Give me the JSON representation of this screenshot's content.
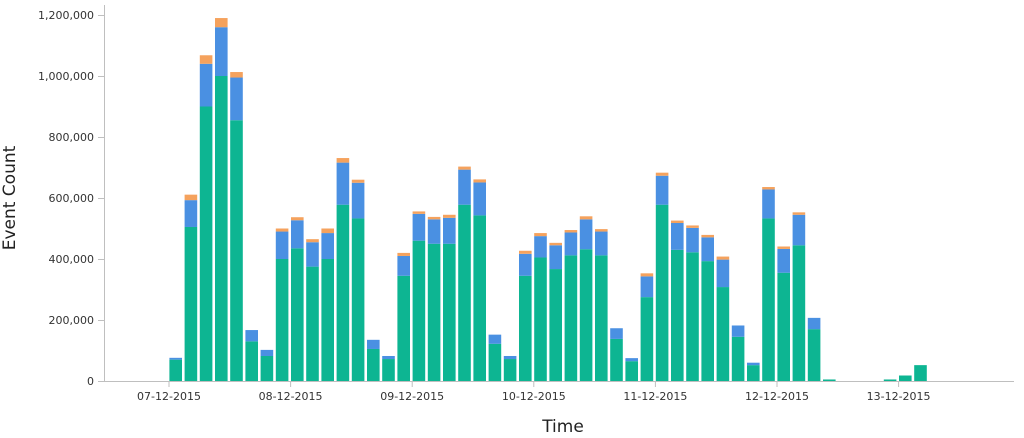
{
  "chart_data": {
    "type": "bar",
    "stacked": true,
    "title": "",
    "xlabel": "Time",
    "ylabel": "Event Count",
    "ylim": [
      0,
      1200000
    ],
    "y_ticks": [
      0,
      200000,
      400000,
      600000,
      800000,
      1000000,
      1200000
    ],
    "y_tick_labels": [
      "0",
      "200,000",
      "400,000",
      "600,000",
      "800,000",
      "1,000,000",
      "1,200,000"
    ],
    "x_ticks": [
      {
        "label": "07-12-2015",
        "bin": 0
      },
      {
        "label": "08-12-2015",
        "bin": 8
      },
      {
        "label": "09-12-2015",
        "bin": 16
      },
      {
        "label": "10-12-2015",
        "bin": 24
      },
      {
        "label": "11-12-2015",
        "bin": 32
      },
      {
        "label": "12-12-2015",
        "bin": 40
      },
      {
        "label": "13-12-2015",
        "bin": 48
      }
    ],
    "bin_count": 56,
    "bin_hours": 3,
    "first_bin": 4,
    "colors": [
      "#0db592",
      "#4a90e2",
      "#f5a25d"
    ],
    "series": [
      {
        "values": [
          70000,
          505000,
          900000,
          1000000,
          855000,
          130000,
          82000,
          400000,
          435000,
          375000,
          400000,
          578000,
          533000,
          105000,
          72000,
          345000,
          460000,
          450000,
          450000,
          578000,
          543000,
          122000,
          72000,
          345000,
          405000,
          367000,
          412000,
          432000,
          412000,
          138000,
          65000,
          275000,
          578000,
          430000,
          422000,
          393000,
          308000,
          145000,
          52000,
          533000,
          355000,
          445000,
          170000,
          5000,
          0,
          0,
          0,
          5000,
          18000,
          52000
        ]
      },
      {
        "values": [
          6000,
          88000,
          140000,
          160000,
          140000,
          37000,
          20000,
          90000,
          92000,
          80000,
          85000,
          138000,
          117000,
          30000,
          10000,
          65000,
          88000,
          80000,
          85000,
          115000,
          108000,
          30000,
          10000,
          72000,
          70000,
          78000,
          75000,
          98000,
          78000,
          35000,
          10000,
          68000,
          95000,
          88000,
          80000,
          78000,
          90000,
          37000,
          8000,
          95000,
          78000,
          100000,
          37000,
          0,
          0,
          0,
          0,
          0,
          0,
          0
        ]
      },
      {
        "values": [
          0,
          18000,
          28000,
          30000,
          18000,
          0,
          0,
          10000,
          10000,
          10000,
          15000,
          15000,
          10000,
          0,
          0,
          10000,
          8000,
          8000,
          10000,
          10000,
          10000,
          0,
          0,
          10000,
          10000,
          8000,
          8000,
          10000,
          8000,
          0,
          0,
          10000,
          10000,
          8000,
          8000,
          8000,
          10000,
          0,
          0,
          8000,
          8000,
          8000,
          0,
          0,
          0,
          0,
          0,
          0,
          0,
          0
        ]
      }
    ]
  }
}
